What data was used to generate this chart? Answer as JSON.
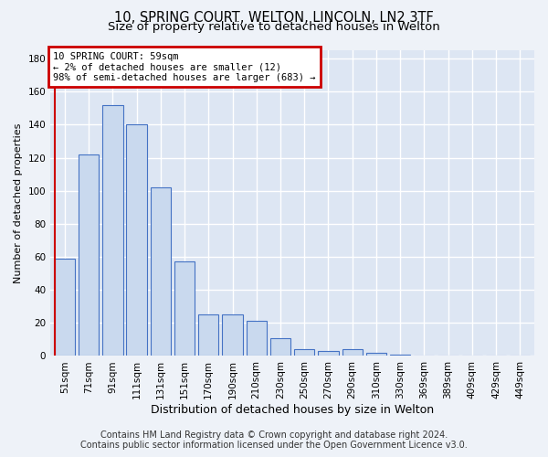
{
  "title_line1": "10, SPRING COURT, WELTON, LINCOLN, LN2 3TF",
  "title_line2": "Size of property relative to detached houses in Welton",
  "xlabel": "Distribution of detached houses by size in Welton",
  "ylabel": "Number of detached properties",
  "bar_labels": [
    "51sqm",
    "71sqm",
    "91sqm",
    "111sqm",
    "131sqm",
    "151sqm",
    "170sqm",
    "190sqm",
    "210sqm",
    "230sqm",
    "250sqm",
    "270sqm",
    "290sqm",
    "310sqm",
    "330sqm",
    "369sqm",
    "389sqm",
    "409sqm",
    "429sqm",
    "449sqm"
  ],
  "bar_values": [
    59,
    122,
    152,
    140,
    102,
    57,
    25,
    25,
    21,
    11,
    4,
    3,
    4,
    2,
    1,
    0,
    0,
    0,
    0,
    0
  ],
  "bar_color": "#c9d9ee",
  "bar_edge_color": "#4472c4",
  "property_bar_index": 0,
  "annotation_title": "10 SPRING COURT: 59sqm",
  "annotation_line1": "← 2% of detached houses are smaller (12)",
  "annotation_line2": "98% of semi-detached houses are larger (683) →",
  "annotation_box_color": "#ffffff",
  "annotation_box_edge_color": "#cc0000",
  "vertical_line_color": "#cc0000",
  "ylim": [
    0,
    185
  ],
  "yticks": [
    0,
    20,
    40,
    60,
    80,
    100,
    120,
    140,
    160,
    180
  ],
  "footer_line1": "Contains HM Land Registry data © Crown copyright and database right 2024.",
  "footer_line2": "Contains public sector information licensed under the Open Government Licence v3.0.",
  "background_color": "#eef2f8",
  "plot_bg_color": "#dde6f3",
  "grid_color": "#ffffff",
  "title_fontsize": 10.5,
  "subtitle_fontsize": 9.5,
  "ylabel_fontsize": 8,
  "xlabel_fontsize": 9,
  "tick_fontsize": 7.5,
  "annot_fontsize": 7.5,
  "footer_fontsize": 7
}
